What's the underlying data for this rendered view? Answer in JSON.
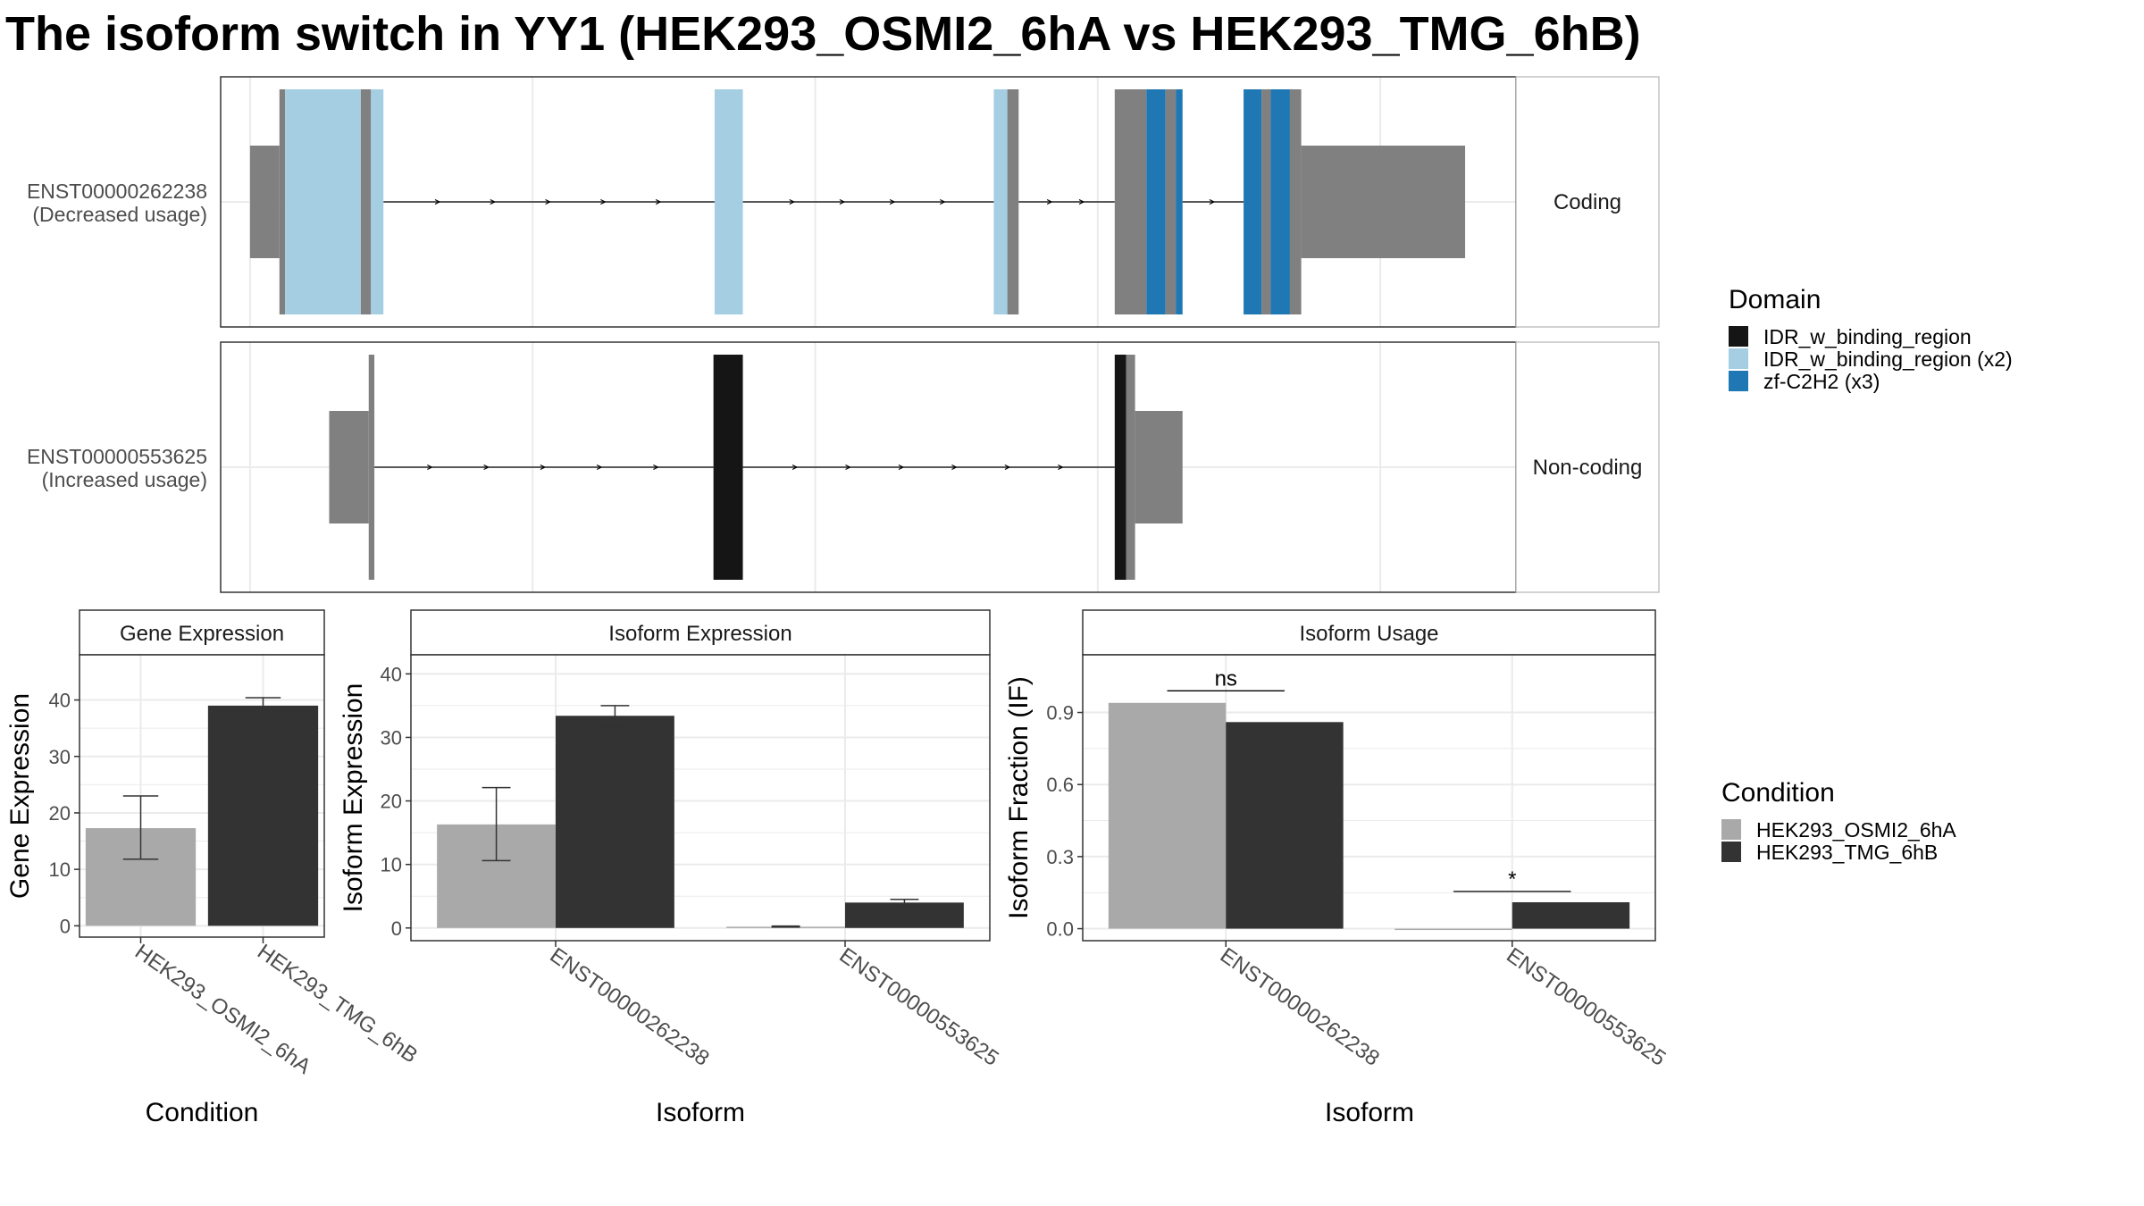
{
  "title": "The isoform switch in YY1 (HEK293_OSMI2_6hA vs HEK293_TMG_6hB)",
  "colors": {
    "intron_exon": "#808080",
    "IDR_w_binding_region": "#151515",
    "IDR_w_binding_region_x2": "#a6cee3",
    "zf_C2H2_x3": "#1f78b4",
    "cond_A": "#a9a9a9",
    "cond_B": "#333333",
    "grid": "#ebebeb",
    "strip_border": "#b3b3b3"
  },
  "structure": {
    "transcripts": [
      {
        "id": "ENST00000262238",
        "usage": "(Decreased usage)",
        "strip": "Coding",
        "segments": [
          {
            "start": 0.0,
            "end": 2.6,
            "h": "utr",
            "c": "intron_exon"
          },
          {
            "start": 2.6,
            "end": 3.1,
            "h": "cds",
            "c": "intron_exon"
          },
          {
            "start": 3.1,
            "end": 9.8,
            "h": "cds",
            "c": "IDR_w_binding_region_x2"
          },
          {
            "start": 9.8,
            "end": 10.7,
            "h": "cds",
            "c": "intron_exon"
          },
          {
            "start": 10.7,
            "end": 11.8,
            "h": "cds",
            "c": "IDR_w_binding_region_x2"
          },
          {
            "start": 41.1,
            "end": 43.6,
            "h": "cds",
            "c": "IDR_w_binding_region_x2"
          },
          {
            "start": 65.8,
            "end": 67.0,
            "h": "cds",
            "c": "IDR_w_binding_region_x2"
          },
          {
            "start": 67.0,
            "end": 68.0,
            "h": "cds",
            "c": "intron_exon"
          },
          {
            "start": 76.5,
            "end": 79.3,
            "h": "cds",
            "c": "intron_exon"
          },
          {
            "start": 79.3,
            "end": 81.0,
            "h": "cds",
            "c": "zf_C2H2_x3"
          },
          {
            "start": 81.0,
            "end": 81.9,
            "h": "cds",
            "c": "intron_exon"
          },
          {
            "start": 81.9,
            "end": 82.5,
            "h": "cds",
            "c": "zf_C2H2_x3"
          },
          {
            "start": 87.9,
            "end": 89.5,
            "h": "cds",
            "c": "zf_C2H2_x3"
          },
          {
            "start": 89.5,
            "end": 90.3,
            "h": "cds",
            "c": "intron_exon"
          },
          {
            "start": 90.3,
            "end": 92.0,
            "h": "cds",
            "c": "zf_C2H2_x3"
          },
          {
            "start": 92.0,
            "end": 93.0,
            "h": "cds",
            "c": "intron_exon"
          },
          {
            "start": 93.0,
            "end": 107.5,
            "h": "utr",
            "c": "intron_exon"
          }
        ],
        "introns": [
          [
            11.8,
            41.1
          ],
          [
            43.6,
            65.8
          ],
          [
            68.0,
            76.5
          ],
          [
            82.5,
            87.9
          ]
        ]
      },
      {
        "id": "ENST00000553625",
        "usage": "(Increased usage)",
        "strip": "Non-coding",
        "segments": [
          {
            "start": 7.0,
            "end": 10.5,
            "h": "utr",
            "c": "intron_exon"
          },
          {
            "start": 10.5,
            "end": 11.0,
            "h": "cds",
            "c": "intron_exon"
          },
          {
            "start": 41.0,
            "end": 43.6,
            "h": "cds",
            "c": "IDR_w_binding_region"
          },
          {
            "start": 76.5,
            "end": 77.5,
            "h": "cds",
            "c": "IDR_w_binding_region"
          },
          {
            "start": 77.5,
            "end": 78.3,
            "h": "cds",
            "c": "intron_exon"
          },
          {
            "start": 78.3,
            "end": 82.5,
            "h": "utr",
            "c": "intron_exon"
          }
        ],
        "introns": [
          [
            11.0,
            41.0
          ],
          [
            43.6,
            76.5
          ]
        ]
      }
    ]
  },
  "legend_domain": {
    "title": "Domain",
    "entries": [
      {
        "label": "IDR_w_binding_region",
        "c": "IDR_w_binding_region"
      },
      {
        "label": "IDR_w_binding_region (x2)",
        "c": "IDR_w_binding_region_x2"
      },
      {
        "label": "zf-C2H2 (x3)",
        "c": "zf_C2H2_x3"
      }
    ]
  },
  "legend_condition": {
    "title": "Condition",
    "entries": [
      {
        "label": "HEK293_OSMI2_6hA",
        "c": "cond_A"
      },
      {
        "label": "HEK293_TMG_6hB",
        "c": "cond_B"
      }
    ]
  },
  "chart_data": [
    {
      "type": "bar",
      "strip": "Gene Expression",
      "categories": [
        "HEK293_OSMI2_6hA",
        "HEK293_TMG_6hB"
      ],
      "values": [
        17.3,
        39.0
      ],
      "error_low": [
        11.8,
        37.6
      ],
      "error_high": [
        23.0,
        40.4
      ],
      "ylabel": "Gene Expression",
      "xlabel": "Condition",
      "ylim": [
        -2,
        48
      ],
      "yticks": [
        0,
        10,
        20,
        30,
        40
      ],
      "grid": true
    },
    {
      "type": "bar",
      "strip": "Isoform Expression",
      "categories": [
        "ENST00000262238",
        "ENST00000553625"
      ],
      "series": [
        {
          "name": "HEK293_OSMI2_6hA",
          "values": [
            16.3,
            0.2
          ],
          "error_low": [
            10.6,
            0.15
          ],
          "error_high": [
            22.1,
            0.3
          ]
        },
        {
          "name": "HEK293_TMG_6hB",
          "values": [
            33.4,
            4.0
          ],
          "error_low": [
            31.6,
            3.6
          ],
          "error_high": [
            35.0,
            4.5
          ]
        }
      ],
      "ylabel": "Isoform Expression",
      "xlabel": "Isoform",
      "ylim": [
        -2,
        43
      ],
      "yticks": [
        0,
        10,
        20,
        30,
        40
      ],
      "grid": true
    },
    {
      "type": "bar",
      "strip": "Isoform Usage",
      "categories": [
        "ENST00000262238",
        "ENST00000553625"
      ],
      "series": [
        {
          "name": "HEK293_OSMI2_6hA",
          "values": [
            0.94,
            0.0
          ]
        },
        {
          "name": "HEK293_TMG_6hB",
          "values": [
            0.86,
            0.11
          ]
        }
      ],
      "annotations": [
        {
          "category": "ENST00000262238",
          "label": "ns",
          "y": 0.99
        },
        {
          "category": "ENST00000553625",
          "label": "*",
          "y": 0.155
        }
      ],
      "ylabel": "Isoform Fraction (IF)",
      "xlabel": "Isoform",
      "ylim": [
        -0.05,
        1.14
      ],
      "yticks": [
        0.0,
        0.3,
        0.6,
        0.9
      ],
      "ytick_labels": [
        "0.0",
        "0.3",
        "0.6",
        "0.9"
      ],
      "grid": true
    }
  ]
}
